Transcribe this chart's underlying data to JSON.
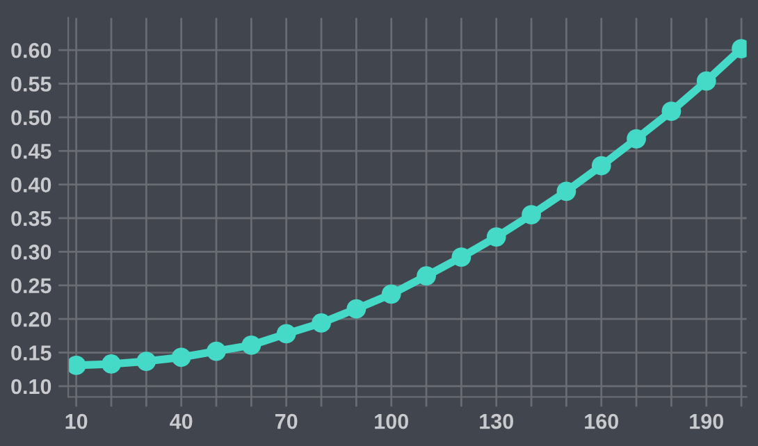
{
  "chart_data": {
    "type": "line",
    "x": [
      10,
      20,
      30,
      40,
      50,
      60,
      70,
      80,
      90,
      100,
      110,
      120,
      130,
      140,
      150,
      160,
      170,
      180,
      190,
      200
    ],
    "series": [
      {
        "color": "#45d9c8",
        "values": [
          0.131,
          0.133,
          0.137,
          0.143,
          0.152,
          0.161,
          0.178,
          0.194,
          0.215,
          0.237,
          0.264,
          0.292,
          0.322,
          0.355,
          0.39,
          0.428,
          0.468,
          0.509,
          0.554,
          0.602
        ]
      }
    ],
    "xlim": [
      7.7,
      201.5
    ],
    "ylim": [
      0.084,
      0.648
    ],
    "xticks": [
      10,
      {
        "value": 20,
        "label": null
      },
      {
        "value": 30,
        "label": null
      },
      40,
      {
        "value": 50,
        "label": null
      },
      {
        "value": 60,
        "label": null
      },
      70,
      {
        "value": 80,
        "label": null
      },
      {
        "value": 90,
        "label": null
      },
      100,
      {
        "value": 110,
        "label": null
      },
      {
        "value": 120,
        "label": null
      },
      130,
      {
        "value": 140,
        "label": null
      },
      {
        "value": 150,
        "label": null
      },
      160,
      {
        "value": 170,
        "label": null
      },
      {
        "value": 180,
        "label": null
      },
      190,
      {
        "value": 200,
        "label": null
      }
    ],
    "yticks": [
      {
        "value": 0.1,
        "label": "0.10"
      },
      {
        "value": 0.15,
        "label": "0.15"
      },
      {
        "value": 0.2,
        "label": "0.20"
      },
      {
        "value": 0.25,
        "label": "0.25"
      },
      {
        "value": 0.3,
        "label": "0.30"
      },
      {
        "value": 0.35,
        "label": "0.35"
      },
      {
        "value": 0.4,
        "label": "0.40"
      },
      {
        "value": 0.45,
        "label": "0.45"
      },
      {
        "value": 0.5,
        "label": "0.50"
      },
      {
        "value": 0.55,
        "label": "0.55"
      },
      {
        "value": 0.6,
        "label": "0.60"
      }
    ],
    "grid": true,
    "marker": "circle",
    "line_style": "solid",
    "legend": false
  }
}
